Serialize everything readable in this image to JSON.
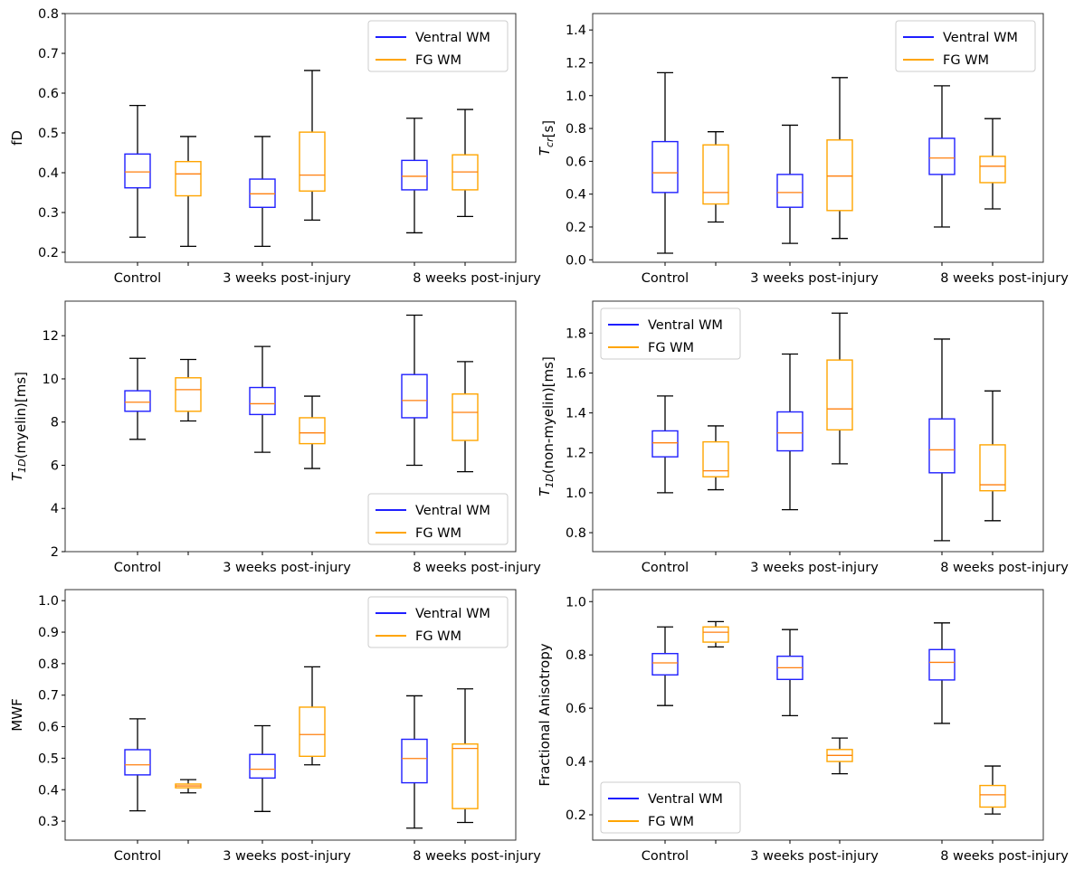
{
  "figure": {
    "groups": [
      "Control",
      "3 weeks post-injury",
      "8 weeks post-injury"
    ],
    "series_colors": {
      "Ventral WM": "#1f1fff",
      "FG WM": "#ffa500"
    },
    "median_color": "#ff7f0e",
    "whisker_color": "#000000"
  },
  "chart_data": [
    {
      "type": "box",
      "title": "",
      "ylabel": "fD",
      "ylabel_parts": [
        {
          "t": "fD"
        }
      ],
      "xlabel": "",
      "categories": [
        "Control",
        "3 weeks post-injury",
        "8 weeks post-injury"
      ],
      "ylim": [
        0.175,
        0.8
      ],
      "yticks": [
        0.2,
        0.3,
        0.4,
        0.5,
        0.6,
        0.7,
        0.8
      ],
      "ytick_labels": [
        "0.2",
        "0.3",
        "0.4",
        "0.5",
        "0.6",
        "0.7",
        "0.8"
      ],
      "legend": {
        "position": "top-right",
        "entries": [
          "Ventral WM",
          "FG WM"
        ]
      },
      "series": [
        {
          "name": "Ventral WM",
          "boxes": [
            {
              "whislo": 0.238,
              "q1": 0.362,
              "med": 0.402,
              "q3": 0.447,
              "whishi": 0.569
            },
            {
              "whislo": 0.215,
              "q1": 0.313,
              "med": 0.347,
              "q3": 0.384,
              "whishi": 0.491
            },
            {
              "whislo": 0.249,
              "q1": 0.357,
              "med": 0.391,
              "q3": 0.431,
              "whishi": 0.537
            }
          ]
        },
        {
          "name": "FG WM",
          "boxes": [
            {
              "whislo": 0.215,
              "q1": 0.342,
              "med": 0.397,
              "q3": 0.428,
              "whishi": 0.491
            },
            {
              "whislo": 0.281,
              "q1": 0.354,
              "med": 0.394,
              "q3": 0.502,
              "whishi": 0.657
            },
            {
              "whislo": 0.29,
              "q1": 0.357,
              "med": 0.402,
              "q3": 0.445,
              "whishi": 0.559
            }
          ]
        }
      ]
    },
    {
      "type": "box",
      "title": "",
      "ylabel": "T_cr[s]",
      "ylabel_parts": [
        {
          "t": "T",
          "i": true
        },
        {
          "t": "cr",
          "i": true,
          "sub": true
        },
        {
          "t": "[s]"
        }
      ],
      "xlabel": "",
      "categories": [
        "Control",
        "3 weeks post-injury",
        "8 weeks post-injury"
      ],
      "ylim": [
        -0.015,
        1.5
      ],
      "yticks": [
        0.0,
        0.2,
        0.4,
        0.6,
        0.8,
        1.0,
        1.2,
        1.4
      ],
      "ytick_labels": [
        "0.0",
        "0.2",
        "0.4",
        "0.6",
        "0.8",
        "1.0",
        "1.2",
        "1.4"
      ],
      "legend": {
        "position": "top-right",
        "entries": [
          "Ventral WM",
          "FG WM"
        ]
      },
      "series": [
        {
          "name": "Ventral WM",
          "boxes": [
            {
              "whislo": 0.04,
              "q1": 0.41,
              "med": 0.53,
              "q3": 0.72,
              "whishi": 1.14
            },
            {
              "whislo": 0.1,
              "q1": 0.32,
              "med": 0.41,
              "q3": 0.52,
              "whishi": 0.82
            },
            {
              "whislo": 0.2,
              "q1": 0.52,
              "med": 0.62,
              "q3": 0.74,
              "whishi": 1.06
            }
          ]
        },
        {
          "name": "FG WM",
          "boxes": [
            {
              "whislo": 0.23,
              "q1": 0.34,
              "med": 0.41,
              "q3": 0.7,
              "whishi": 0.78
            },
            {
              "whislo": 0.13,
              "q1": 0.3,
              "med": 0.51,
              "q3": 0.73,
              "whishi": 1.11
            },
            {
              "whislo": 0.31,
              "q1": 0.47,
              "med": 0.57,
              "q3": 0.63,
              "whishi": 0.86
            }
          ]
        }
      ]
    },
    {
      "type": "box",
      "title": "",
      "ylabel": "T_1D(myelin)[ms]",
      "ylabel_parts": [
        {
          "t": "T",
          "i": true
        },
        {
          "t": "1D",
          "i": true,
          "sub": true
        },
        {
          "t": "(myelin)[ms]"
        }
      ],
      "xlabel": "",
      "categories": [
        "Control",
        "3 weeks post-injury",
        "8 weeks post-injury"
      ],
      "ylim": [
        2.0,
        13.6
      ],
      "yticks": [
        2,
        4,
        6,
        8,
        10,
        12
      ],
      "ytick_labels": [
        "2",
        "4",
        "6",
        "8",
        "10",
        "12"
      ],
      "legend": {
        "position": "bottom-right",
        "entries": [
          "Ventral WM",
          "FG WM"
        ]
      },
      "series": [
        {
          "name": "Ventral WM",
          "boxes": [
            {
              "whislo": 7.2,
              "q1": 8.5,
              "med": 8.92,
              "q3": 9.45,
              "whishi": 10.95
            },
            {
              "whislo": 6.6,
              "q1": 8.35,
              "med": 8.85,
              "q3": 9.6,
              "whishi": 11.5
            },
            {
              "whislo": 6.0,
              "q1": 8.2,
              "med": 9.0,
              "q3": 10.2,
              "whishi": 12.95
            }
          ]
        },
        {
          "name": "FG WM",
          "boxes": [
            {
              "whislo": 8.05,
              "q1": 8.5,
              "med": 9.5,
              "q3": 10.05,
              "whishi": 10.9
            },
            {
              "whislo": 5.85,
              "q1": 7.0,
              "med": 7.5,
              "q3": 8.2,
              "whishi": 9.2
            },
            {
              "whislo": 5.7,
              "q1": 7.15,
              "med": 8.45,
              "q3": 9.3,
              "whishi": 10.8
            }
          ]
        }
      ]
    },
    {
      "type": "box",
      "title": "",
      "ylabel": "T_1D(non-myelin)[ms]",
      "ylabel_parts": [
        {
          "t": "T",
          "i": true
        },
        {
          "t": "1D",
          "i": true,
          "sub": true
        },
        {
          "t": "(non-myelin)[ms]"
        }
      ],
      "xlabel": "",
      "categories": [
        "Control",
        "3 weeks post-injury",
        "8 weeks post-injury"
      ],
      "ylim": [
        0.705,
        1.96
      ],
      "yticks": [
        0.8,
        1.0,
        1.2,
        1.4,
        1.6,
        1.8
      ],
      "ytick_labels": [
        "0.8",
        "1.0",
        "1.2",
        "1.4",
        "1.6",
        "1.8"
      ],
      "legend": {
        "position": "top-left",
        "entries": [
          "Ventral WM",
          "FG WM"
        ]
      },
      "series": [
        {
          "name": "Ventral WM",
          "boxes": [
            {
              "whislo": 1.0,
              "q1": 1.18,
              "med": 1.25,
              "q3": 1.31,
              "whishi": 1.485
            },
            {
              "whislo": 0.915,
              "q1": 1.21,
              "med": 1.3,
              "q3": 1.405,
              "whishi": 1.695
            },
            {
              "whislo": 0.76,
              "q1": 1.1,
              "med": 1.215,
              "q3": 1.37,
              "whishi": 1.77
            }
          ]
        },
        {
          "name": "FG WM",
          "boxes": [
            {
              "whislo": 1.015,
              "q1": 1.08,
              "med": 1.11,
              "q3": 1.255,
              "whishi": 1.335
            },
            {
              "whislo": 1.145,
              "q1": 1.315,
              "med": 1.42,
              "q3": 1.665,
              "whishi": 1.9
            },
            {
              "whislo": 0.86,
              "q1": 1.01,
              "med": 1.04,
              "q3": 1.24,
              "whishi": 1.51
            }
          ]
        }
      ]
    },
    {
      "type": "box",
      "title": "",
      "ylabel": "MWF",
      "ylabel_parts": [
        {
          "t": "MWF"
        }
      ],
      "xlabel": "",
      "categories": [
        "Control",
        "3 weeks post-injury",
        "8 weeks post-injury"
      ],
      "ylim": [
        0.24,
        1.035
      ],
      "yticks": [
        0.3,
        0.4,
        0.5,
        0.6,
        0.7,
        0.8,
        0.9,
        1.0
      ],
      "ytick_labels": [
        "0.3",
        "0.4",
        "0.5",
        "0.6",
        "0.7",
        "0.8",
        "0.9",
        "1.0"
      ],
      "legend": {
        "position": "top-right",
        "entries": [
          "Ventral WM",
          "FG WM"
        ]
      },
      "series": [
        {
          "name": "Ventral WM",
          "boxes": [
            {
              "whislo": 0.333,
              "q1": 0.447,
              "med": 0.479,
              "q3": 0.527,
              "whishi": 0.625
            },
            {
              "whislo": 0.331,
              "q1": 0.437,
              "med": 0.465,
              "q3": 0.512,
              "whishi": 0.603
            },
            {
              "whislo": 0.278,
              "q1": 0.422,
              "med": 0.499,
              "q3": 0.56,
              "whishi": 0.698
            }
          ]
        },
        {
          "name": "FG WM",
          "boxes": [
            {
              "whislo": 0.39,
              "q1": 0.406,
              "med": 0.412,
              "q3": 0.418,
              "whishi": 0.432
            },
            {
              "whislo": 0.479,
              "q1": 0.506,
              "med": 0.575,
              "q3": 0.662,
              "whishi": 0.79
            },
            {
              "whislo": 0.296,
              "q1": 0.34,
              "med": 0.531,
              "q3": 0.545,
              "whishi": 0.72
            }
          ]
        }
      ]
    },
    {
      "type": "box",
      "title": "",
      "ylabel": "Fractional Anisotropy",
      "ylabel_parts": [
        {
          "t": "Fractional Anisotropy"
        }
      ],
      "xlabel": "",
      "categories": [
        "Control",
        "3 weeks post-injury",
        "8 weeks post-injury"
      ],
      "ylim": [
        0.105,
        1.045
      ],
      "yticks": [
        0.2,
        0.4,
        0.6,
        0.8,
        1.0
      ],
      "ytick_labels": [
        "0.2",
        "0.4",
        "0.6",
        "0.8",
        "1.0"
      ],
      "legend": {
        "position": "bottom-left",
        "entries": [
          "Ventral WM",
          "FG WM"
        ]
      },
      "series": [
        {
          "name": "Ventral WM",
          "boxes": [
            {
              "whislo": 0.61,
              "q1": 0.725,
              "med": 0.77,
              "q3": 0.805,
              "whishi": 0.905
            },
            {
              "whislo": 0.572,
              "q1": 0.708,
              "med": 0.752,
              "q3": 0.795,
              "whishi": 0.895
            },
            {
              "whislo": 0.543,
              "q1": 0.706,
              "med": 0.772,
              "q3": 0.82,
              "whishi": 0.92
            }
          ]
        },
        {
          "name": "FG WM",
          "boxes": [
            {
              "whislo": 0.83,
              "q1": 0.848,
              "med": 0.885,
              "q3": 0.905,
              "whishi": 0.925
            },
            {
              "whislo": 0.354,
              "q1": 0.4,
              "med": 0.423,
              "q3": 0.445,
              "whishi": 0.488
            },
            {
              "whislo": 0.203,
              "q1": 0.229,
              "med": 0.275,
              "q3": 0.31,
              "whishi": 0.383
            }
          ]
        }
      ]
    }
  ]
}
